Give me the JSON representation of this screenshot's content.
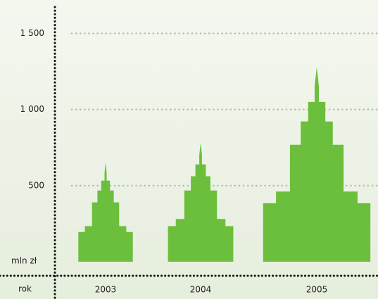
{
  "chart_data": {
    "type": "bar",
    "categories": [
      "2003",
      "2004",
      "2005"
    ],
    "values": [
      650,
      780,
      1280
    ],
    "color": "#6cbf3c",
    "ylim": [
      0,
      1650
    ],
    "yticks": [
      500,
      {
        "value": 1000,
        "label": "1 000"
      },
      {
        "value": 1500,
        "label": "1 500"
      }
    ],
    "ylabel": "mln zł",
    "xlabel": "rok",
    "grid": true
  }
}
